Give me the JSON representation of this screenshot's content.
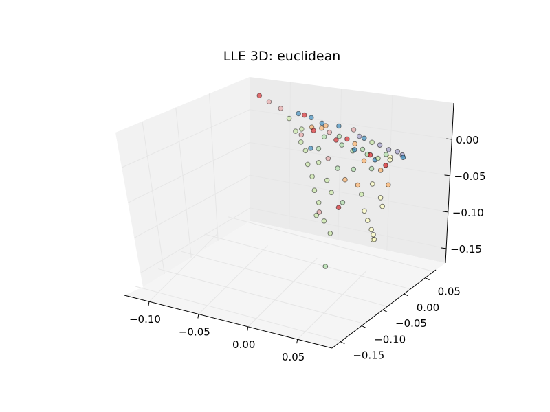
{
  "chart_data": {
    "type": "scatter",
    "projection": "3d",
    "title": "LLE 3D: euclidean",
    "xlabel": "",
    "ylabel": "",
    "zlabel": "",
    "x_axis": {
      "ticks": [
        -0.1,
        -0.05,
        0.0,
        0.05
      ],
      "tick_labels": [
        "−0.10",
        "−0.05",
        "0.00",
        "0.05"
      ],
      "range": [
        -0.125,
        0.085
      ]
    },
    "y_axis": {
      "ticks": [
        -0.15,
        -0.1,
        -0.05,
        0.0,
        0.05
      ],
      "tick_labels": [
        "−0.15",
        "−0.10",
        "−0.05",
        "0.00",
        "0.05"
      ],
      "range": [
        -0.17,
        0.075
      ]
    },
    "z_axis": {
      "ticks": [
        -0.15,
        -0.1,
        -0.05,
        0.0
      ],
      "tick_labels": [
        "−0.15",
        "−0.10",
        "−0.05",
        "0.00"
      ],
      "range": [
        -0.17,
        0.05
      ]
    },
    "grid": true,
    "legend": "none",
    "palette": [
      "#d7191c",
      "#fdae61",
      "#ffffbf",
      "#abdda4",
      "#2b83ba",
      "#e8a0a0",
      "#9e9ac8",
      "#c7e9a0"
    ],
    "series": [
      {
        "points": [
          [
            -0.09,
            0.05,
            0.02,
            0
          ],
          [
            -0.08,
            0.05,
            0.015,
            5
          ],
          [
            -0.068,
            0.05,
            0.01,
            5
          ],
          [
            -0.048,
            0.045,
            0.012,
            4
          ],
          [
            -0.042,
            0.045,
            0.012,
            0
          ],
          [
            -0.035,
            0.045,
            0.011,
            4
          ],
          [
            -0.022,
            0.04,
            0.01,
            4
          ],
          [
            -0.018,
            0.04,
            0.008,
            1
          ],
          [
            -0.005,
            0.04,
            0.012,
            4
          ],
          [
            0.01,
            0.04,
            0.012,
            5
          ],
          [
            0.018,
            0.035,
            0.008,
            6
          ],
          [
            0.025,
            0.03,
            0.01,
            4
          ],
          [
            0.035,
            0.025,
            0.01,
            7
          ],
          [
            0.045,
            0.02,
            0.012,
            6
          ],
          [
            0.055,
            0.018,
            0.01,
            6
          ],
          [
            0.065,
            0.015,
            0.012,
            6
          ],
          [
            0.072,
            0.01,
            0.012,
            6
          ],
          [
            0.075,
            0.005,
            0.012,
            4
          ],
          [
            0.06,
            0.01,
            0.005,
            2
          ],
          [
            0.05,
            0.005,
            0.002,
            7
          ],
          [
            0.04,
            0.01,
            0.001,
            0
          ],
          [
            0.03,
            0.015,
            0.003,
            3
          ],
          [
            0.02,
            0.02,
            0.005,
            1
          ],
          [
            0.01,
            0.025,
            0.006,
            0
          ],
          [
            0.0,
            0.03,
            0.004,
            3
          ],
          [
            -0.01,
            0.03,
            0.006,
            5
          ],
          [
            -0.02,
            0.035,
            0.006,
            1
          ],
          [
            -0.03,
            0.035,
            0.004,
            1
          ],
          [
            -0.028,
            0.035,
            0.0,
            0
          ],
          [
            -0.015,
            0.03,
            -0.002,
            3
          ],
          [
            0.005,
            0.025,
            -0.004,
            3
          ],
          [
            0.02,
            0.02,
            -0.003,
            4
          ],
          [
            0.035,
            0.015,
            -0.002,
            3
          ],
          [
            0.045,
            0.01,
            -0.004,
            4
          ],
          [
            0.06,
            0.0,
            -0.002,
            0
          ],
          [
            0.062,
            0.005,
            0.004,
            2
          ],
          [
            0.055,
            0.012,
            0.006,
            3
          ],
          [
            -0.055,
            0.04,
            0.005,
            7
          ],
          [
            -0.048,
            0.04,
            -0.01,
            7
          ],
          [
            -0.04,
            0.035,
            -0.02,
            7
          ],
          [
            -0.035,
            0.035,
            -0.03,
            7
          ],
          [
            -0.03,
            0.03,
            -0.045,
            7
          ],
          [
            -0.025,
            0.03,
            -0.06,
            7
          ],
          [
            -0.02,
            0.025,
            -0.075,
            7
          ],
          [
            -0.015,
            0.025,
            -0.09,
            7
          ],
          [
            -0.012,
            0.02,
            -0.1,
            5
          ],
          [
            -0.03,
            0.035,
            -0.025,
            4
          ],
          [
            -0.04,
            0.035,
            -0.01,
            5
          ],
          [
            -0.02,
            0.03,
            -0.02,
            3
          ],
          [
            -0.01,
            0.03,
            -0.03,
            5
          ],
          [
            0.0,
            0.03,
            -0.04,
            3
          ],
          [
            0.01,
            0.025,
            -0.05,
            1
          ],
          [
            0.02,
            0.02,
            -0.03,
            3
          ],
          [
            0.025,
            0.02,
            -0.05,
            1
          ],
          [
            0.03,
            0.018,
            -0.06,
            7
          ],
          [
            0.035,
            0.015,
            -0.08,
            2
          ],
          [
            0.04,
            0.012,
            -0.09,
            2
          ],
          [
            0.045,
            0.01,
            -0.1,
            2
          ],
          [
            0.048,
            0.008,
            -0.105,
            2
          ],
          [
            0.048,
            0.008,
            -0.112,
            2
          ],
          [
            0.05,
            0.006,
            -0.11,
            2
          ],
          [
            0.042,
            0.014,
            -0.04,
            2
          ],
          [
            0.055,
            0.004,
            -0.05,
            2
          ],
          [
            0.058,
            0.002,
            -0.06,
            2
          ],
          [
            -0.005,
            0.03,
            -0.075,
            7
          ],
          [
            -0.01,
            0.03,
            -0.06,
            7
          ],
          [
            0.005,
            0.025,
            -0.09,
            0
          ],
          [
            0.01,
            0.022,
            -0.08,
            3
          ],
          [
            -0.02,
            0.032,
            -0.04,
            7
          ],
          [
            -0.018,
            0.028,
            -0.11,
            7
          ],
          [
            -0.01,
            0.028,
            -0.115,
            7
          ],
          [
            0.0,
            0.02,
            -0.125,
            7
          ],
          [
            0.005,
            0.0,
            -0.16,
            3
          ],
          [
            -0.005,
            0.035,
            -0.005,
            0
          ],
          [
            0.015,
            0.028,
            -0.01,
            3
          ],
          [
            0.03,
            0.02,
            -0.015,
            1
          ],
          [
            0.04,
            0.015,
            -0.02,
            3
          ],
          [
            0.052,
            0.008,
            -0.015,
            1
          ],
          [
            0.062,
            0.004,
            -0.03,
            1
          ],
          [
            -0.042,
            0.04,
            -0.005,
            7
          ]
        ]
      }
    ]
  }
}
